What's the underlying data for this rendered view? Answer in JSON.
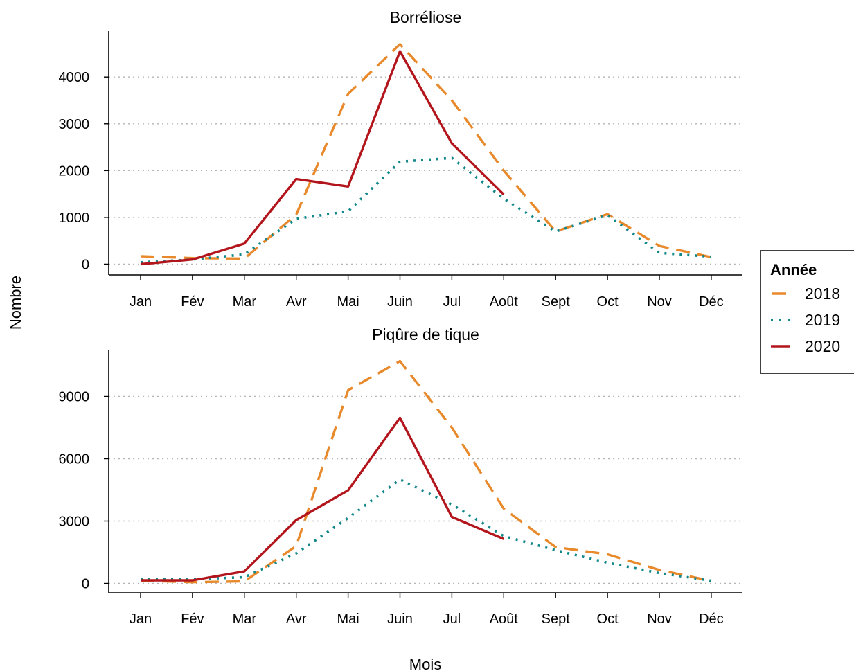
{
  "figure": {
    "ylabel": "Nombre",
    "xlabel": "Mois"
  },
  "legend": {
    "title": "Année",
    "position": "right"
  },
  "chart_data": [
    {
      "type": "line",
      "title": "Borréliose",
      "categories": [
        "Jan",
        "Fév",
        "Mar",
        "Avr",
        "Mai",
        "Juin",
        "Jul",
        "Août",
        "Sept",
        "Oct",
        "Nov",
        "Déc"
      ],
      "ylim": [
        -230,
        4980
      ],
      "yticks": [
        0,
        1000,
        2000,
        3000,
        4000
      ],
      "grid": "horizontal dotted",
      "series": [
        {
          "name": "2018",
          "color": "#E8892B",
          "dash": "dashed",
          "values": [
            170,
            130,
            120,
            1060,
            3640,
            4700,
            3500,
            2000,
            700,
            1070,
            390,
            150
          ]
        },
        {
          "name": "2019",
          "color": "#12878A",
          "dash": "dotted",
          "values": [
            40,
            100,
            210,
            970,
            1130,
            2190,
            2270,
            1400,
            700,
            1050,
            240,
            160
          ]
        },
        {
          "name": "2020",
          "color": "#B2151B",
          "dash": "solid",
          "values": [
            0,
            100,
            440,
            1820,
            1660,
            4550,
            2580,
            1490,
            null,
            null,
            null,
            null
          ]
        }
      ]
    },
    {
      "type": "line",
      "title": "Piqûre de tique",
      "categories": [
        "Jan",
        "Fév",
        "Mar",
        "Avr",
        "Mai",
        "Juin",
        "Jul",
        "Août",
        "Sept",
        "Oct",
        "Nov",
        "Déc"
      ],
      "ylim": [
        -450,
        11250
      ],
      "yticks": [
        0,
        3000,
        6000,
        9000
      ],
      "grid": "horizontal dotted",
      "series": [
        {
          "name": "2018",
          "color": "#E8892B",
          "dash": "dashed",
          "values": [
            130,
            60,
            100,
            1800,
            9300,
            10700,
            7500,
            3600,
            1750,
            1400,
            650,
            120
          ]
        },
        {
          "name": "2019",
          "color": "#12878A",
          "dash": "dotted",
          "values": [
            200,
            200,
            300,
            1450,
            3150,
            5000,
            3800,
            2280,
            1600,
            1000,
            500,
            130
          ]
        },
        {
          "name": "2020",
          "color": "#B2151B",
          "dash": "solid",
          "values": [
            150,
            150,
            580,
            3050,
            4480,
            7970,
            3200,
            2140,
            null,
            null,
            null,
            null
          ]
        }
      ]
    }
  ]
}
